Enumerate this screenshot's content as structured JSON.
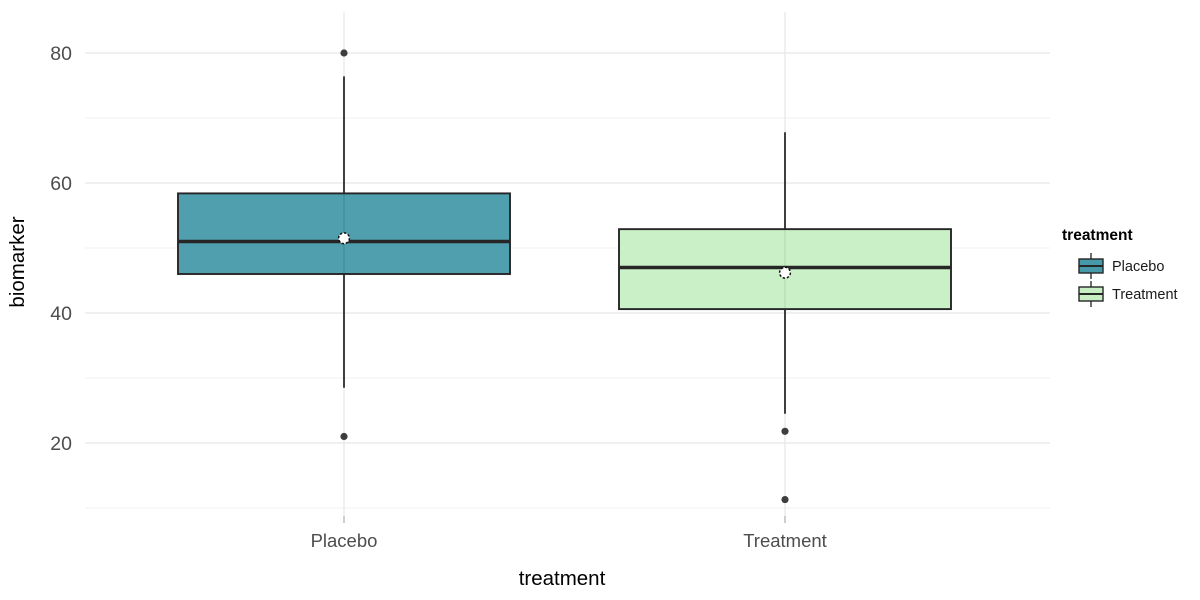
{
  "chart_data": {
    "type": "boxplot",
    "title": "",
    "xlabel": "treatment",
    "ylabel": "biomarker",
    "categories": [
      "Placebo",
      "Treatment"
    ],
    "y_ticks": [
      20,
      40,
      60,
      80
    ],
    "y_minor_ticks": [
      10,
      30,
      50,
      70
    ],
    "ylim": [
      8.5,
      86.5
    ],
    "grid": true,
    "legend_position": "right",
    "groups": [
      {
        "name": "Placebo",
        "fill": "#4599a9",
        "q1": 46.0,
        "median": 51.0,
        "q3": 58.4,
        "whisker_low": 28.5,
        "whisker_high": 76.4,
        "mean": 51.5,
        "outliers": [
          80,
          21
        ]
      },
      {
        "name": "Treatment",
        "fill": "#c7efc3",
        "q1": 40.6,
        "median": 47.0,
        "q3": 52.9,
        "whisker_low": 24.5,
        "whisker_high": 67.8,
        "mean": 46.2,
        "outliers": [
          21.8,
          11.3
        ]
      }
    ],
    "legend": {
      "title": "treatment",
      "entries": [
        {
          "label": "Placebo",
          "fill": "#4599a9"
        },
        {
          "label": "Treatment",
          "fill": "#c7efc3"
        }
      ]
    }
  },
  "colors": {
    "box_stroke": "#262626",
    "outlier_fill": "#3d3d3d",
    "mean_fill": "#ffffff",
    "mean_stroke": "#111111",
    "grid_major": "#e8e8e8",
    "grid_minor": "#f2f2f2",
    "axis_tick_mark": "#bdbdbd",
    "background": "#ffffff"
  }
}
